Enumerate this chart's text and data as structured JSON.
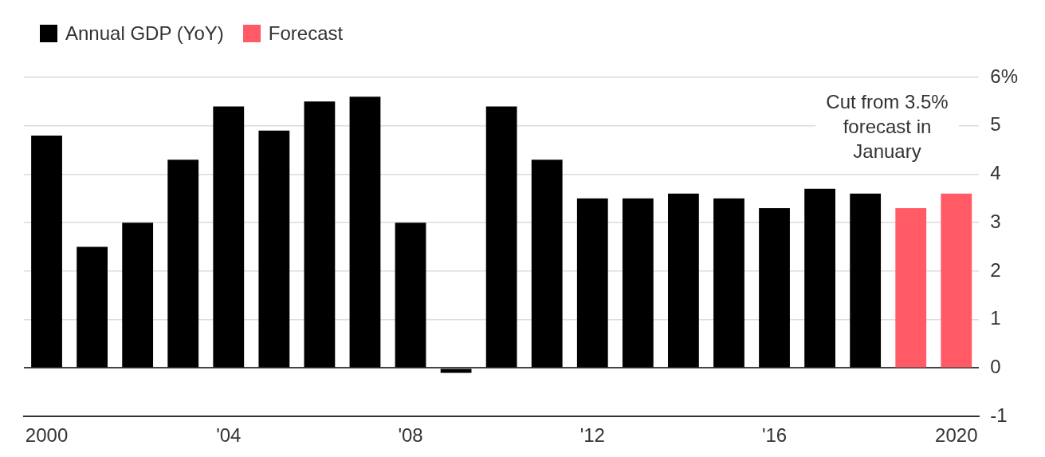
{
  "chart_data": {
    "type": "bar",
    "categories": [
      "2000",
      null,
      null,
      null,
      "'04",
      null,
      null,
      null,
      "'08",
      null,
      null,
      null,
      "'12",
      null,
      null,
      null,
      "'16",
      null,
      null,
      null,
      "2020"
    ],
    "series": [
      {
        "name": "Annual GDP (YoY)",
        "color": "#000000",
        "values": [
          4.8,
          2.5,
          3.0,
          4.3,
          5.4,
          4.9,
          5.5,
          5.6,
          3.0,
          -0.1,
          5.4,
          4.3,
          3.5,
          3.5,
          3.6,
          3.5,
          3.3,
          3.7,
          3.6,
          null,
          null
        ]
      },
      {
        "name": "Forecast",
        "color": "#ff5a65",
        "values": [
          null,
          null,
          null,
          null,
          null,
          null,
          null,
          null,
          null,
          null,
          null,
          null,
          null,
          null,
          null,
          null,
          null,
          null,
          null,
          3.3,
          3.6
        ]
      }
    ],
    "ylim": [
      -1,
      6
    ],
    "yticks": [
      -1,
      0,
      1,
      2,
      3,
      4,
      5,
      {
        "value": 6,
        "label": "6%"
      }
    ],
    "grid": "y",
    "legend": "top left",
    "annotations": [
      "Cut from 3.5% forecast in January"
    ]
  }
}
